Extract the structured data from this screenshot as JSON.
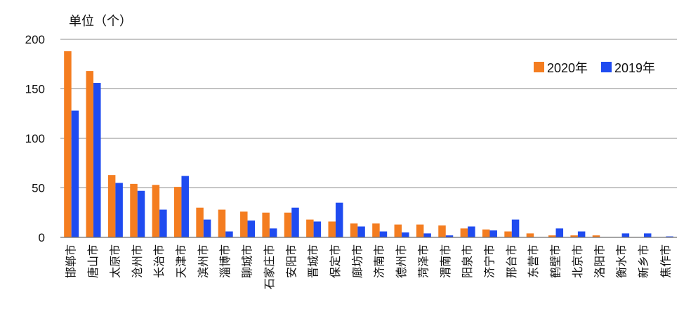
{
  "chart_data": {
    "type": "bar",
    "unit_label": "单位（个）",
    "ylim": [
      0,
      200
    ],
    "yticks": [
      0,
      50,
      100,
      150,
      200
    ],
    "grid": true,
    "legend_position": "top-right",
    "categories": [
      "邯郸市",
      "唐山市",
      "太原市",
      "沧州市",
      "长治市",
      "天津市",
      "滨州市",
      "淄博市",
      "聊城市",
      "石家庄市",
      "安阳市",
      "晋城市",
      "保定市",
      "廊坊市",
      "济南市",
      "德州市",
      "菏泽市",
      "渭南市",
      "阳泉市",
      "济宁市",
      "邢台市",
      "东营市",
      "鹤壁市",
      "北京市",
      "洛阳市",
      "衡水市",
      "新乡市",
      "焦作市"
    ],
    "series": [
      {
        "name": "2020年",
        "color": "#F47D20",
        "values": [
          188,
          168,
          63,
          54,
          53,
          51,
          30,
          28,
          26,
          25,
          25,
          18,
          16,
          14,
          14,
          13,
          13,
          12,
          9,
          8,
          6,
          4,
          2,
          2,
          2,
          0,
          0,
          0
        ]
      },
      {
        "name": "2019年",
        "color": "#1F4BF0",
        "values": [
          128,
          156,
          55,
          47,
          28,
          62,
          18,
          6,
          17,
          9,
          30,
          16,
          35,
          11,
          6,
          5,
          4,
          2,
          11,
          7,
          18,
          0,
          9,
          6,
          0,
          4,
          4,
          1
        ]
      }
    ]
  }
}
